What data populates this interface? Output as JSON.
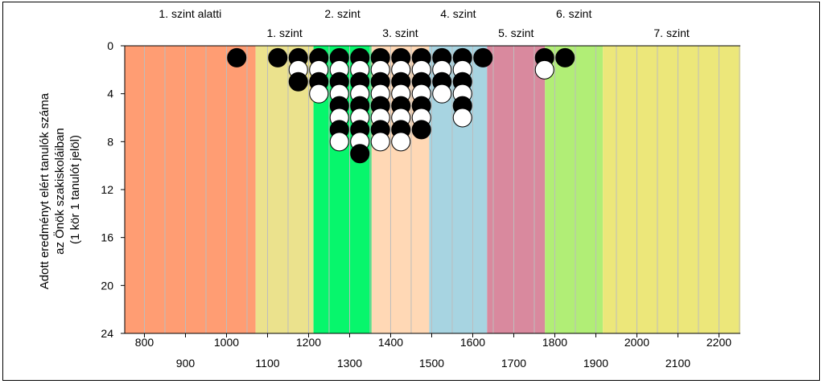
{
  "chart_data": {
    "type": "scatter",
    "subtype": "dot-plot (1 circle = 1 student, alternating black/white)",
    "ylabel_lines": [
      "Adott eredményt elért tanulók száma",
      "az Önök szakiskoláiban",
      "(1 kör 1 tanulót jelöl)"
    ],
    "xlim": [
      752,
      2252
    ],
    "ylim": [
      0,
      24
    ],
    "y_inverted": true,
    "y_ticks": [
      "0",
      "4",
      "8",
      "12",
      "16",
      "20",
      "24"
    ],
    "x_ticks_upper": [
      "800",
      "1000",
      "1200",
      "1400",
      "1600",
      "1800",
      "2000",
      "2200"
    ],
    "x_ticks_lower": [
      "900",
      "1100",
      "1300",
      "1500",
      "1700",
      "1900",
      "2100"
    ],
    "vertical_grid_step": 50,
    "levels": [
      {
        "label": "1. szint alatti",
        "from": 752,
        "to": 1071,
        "color": "#FF9D73",
        "row": "top"
      },
      {
        "label": "1. szint",
        "from": 1071,
        "to": 1212,
        "color": "#EBE28D",
        "row": "bottom"
      },
      {
        "label": "2. szint",
        "from": 1212,
        "to": 1353,
        "color": "#07F66C",
        "row": "top"
      },
      {
        "label": "3. szint",
        "from": 1353,
        "to": 1494,
        "color": "#FFD8B5",
        "row": "bottom"
      },
      {
        "label": "4. szint",
        "from": 1494,
        "to": 1635,
        "color": "#A7D4E1",
        "row": "top"
      },
      {
        "label": "5. szint",
        "from": 1635,
        "to": 1776,
        "color": "#D9899E",
        "row": "bottom"
      },
      {
        "label": "6. szint",
        "from": 1776,
        "to": 1917,
        "color": "#B1EE76",
        "row": "top"
      },
      {
        "label": "7. szint",
        "from": 1917,
        "to": 2252,
        "color": "#ECE77A",
        "row": "bottom"
      }
    ],
    "columns": [
      {
        "x": 1025,
        "count": 1
      },
      {
        "x": 1125,
        "count": 1
      },
      {
        "x": 1175,
        "count": 3
      },
      {
        "x": 1225,
        "count": 4
      },
      {
        "x": 1275,
        "count": 8
      },
      {
        "x": 1325,
        "count": 9
      },
      {
        "x": 1375,
        "count": 8
      },
      {
        "x": 1425,
        "count": 8
      },
      {
        "x": 1475,
        "count": 7
      },
      {
        "x": 1525,
        "count": 4
      },
      {
        "x": 1575,
        "count": 6
      },
      {
        "x": 1625,
        "count": 1
      },
      {
        "x": 1775,
        "count": 2
      },
      {
        "x": 1825,
        "count": 1
      }
    ],
    "colors": {
      "dot_odd": "#000000",
      "dot_even": "#ffffff",
      "grid": "#bdbdbd",
      "axis": "#000000"
    }
  }
}
